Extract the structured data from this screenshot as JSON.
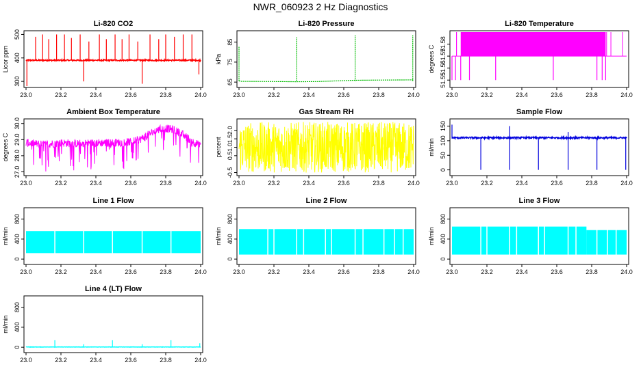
{
  "title": "NWR_060923 2 Hz Diagnostics",
  "chart_data": [
    {
      "type": "line",
      "title": "Li-820 CO2",
      "ylabel": "Licor ppm",
      "color": "#ff0000",
      "xlim": [
        23.0,
        24.0
      ],
      "ylim": [
        280,
        510
      ],
      "xticks": [
        "23.0",
        "23.2",
        "23.4",
        "23.6",
        "23.8",
        "24.0"
      ],
      "yticks": [
        "300",
        "400",
        "500"
      ],
      "baseline": 390,
      "noise": 3,
      "spikes": [
        {
          "x": 23.005,
          "y": 280
        },
        {
          "x": 23.055,
          "y": 490
        },
        {
          "x": 23.095,
          "y": 500
        },
        {
          "x": 23.13,
          "y": 480
        },
        {
          "x": 23.175,
          "y": 500
        },
        {
          "x": 23.22,
          "y": 500
        },
        {
          "x": 23.26,
          "y": 485
        },
        {
          "x": 23.31,
          "y": 500
        },
        {
          "x": 23.33,
          "y": 300
        },
        {
          "x": 23.36,
          "y": 470
        },
        {
          "x": 23.42,
          "y": 500
        },
        {
          "x": 23.46,
          "y": 480
        },
        {
          "x": 23.51,
          "y": 500
        },
        {
          "x": 23.55,
          "y": 480
        },
        {
          "x": 23.59,
          "y": 500
        },
        {
          "x": 23.64,
          "y": 470
        },
        {
          "x": 23.665,
          "y": 290
        },
        {
          "x": 23.71,
          "y": 500
        },
        {
          "x": 23.76,
          "y": 480
        },
        {
          "x": 23.8,
          "y": 500
        },
        {
          "x": 23.85,
          "y": 490
        },
        {
          "x": 23.9,
          "y": 500
        },
        {
          "x": 23.95,
          "y": 500
        },
        {
          "x": 23.99,
          "y": 330
        }
      ]
    },
    {
      "type": "line",
      "title": "Li-820 Pressure",
      "ylabel": "kPa",
      "color": "#00bb00",
      "xlim": [
        23.0,
        24.0
      ],
      "ylim": [
        63,
        90
      ],
      "xticks": [
        "23.0",
        "23.2",
        "23.4",
        "23.6",
        "23.8",
        "24.0"
      ],
      "yticks": [
        "65",
        "75",
        "85"
      ],
      "x": [
        23.0,
        23.01,
        23.2,
        23.33,
        23.45,
        23.66,
        23.8,
        23.99,
        24.0
      ],
      "y": [
        65.6,
        65.4,
        65.3,
        65.2,
        65.3,
        65.9,
        66.0,
        66.1,
        66.2
      ],
      "spikes": [
        {
          "x": 23.0,
          "y": 83
        },
        {
          "x": 23.33,
          "y": 87.5
        },
        {
          "x": 23.665,
          "y": 88.5
        },
        {
          "x": 23.995,
          "y": 88.5
        }
      ]
    },
    {
      "type": "line",
      "title": "Li-820 Temperature",
      "ylabel": "degrees C",
      "color": "#ff00ff",
      "xlim": [
        23.0,
        24.0
      ],
      "ylim": [
        51.545,
        51.59
      ],
      "xticks": [
        "23.0",
        "23.2",
        "23.4",
        "23.6",
        "23.8",
        "24.0"
      ],
      "yticks": [
        "51.55",
        "51.56",
        "51.57",
        "51.58"
      ],
      "low": 51.55,
      "mid": 51.57,
      "high": 51.59,
      "dense_range": [
        23.05,
        23.88
      ]
    },
    {
      "type": "line",
      "title": "Ambient Box Temperature",
      "ylabel": "degrees C",
      "color": "#ff00ff",
      "xlim": [
        23.0,
        24.0
      ],
      "ylim": [
        26.85,
        30.2
      ],
      "xticks": [
        "23.0",
        "23.2",
        "23.4",
        "23.6",
        "23.8",
        "24.0"
      ],
      "yticks": [
        "27.0",
        "28.0",
        "29.0",
        "30.0"
      ],
      "x": [
        23.0,
        23.1,
        23.2,
        23.3,
        23.4,
        23.5,
        23.6,
        23.65,
        23.7,
        23.75,
        23.8,
        23.85,
        23.9,
        23.95,
        24.0
      ],
      "y": [
        28.8,
        28.7,
        28.8,
        28.75,
        28.8,
        28.8,
        28.85,
        29.0,
        29.3,
        29.6,
        29.7,
        29.6,
        29.3,
        28.9,
        28.6
      ]
    },
    {
      "type": "line",
      "title": "Gas Stream RH",
      "ylabel": "percent",
      "color": "#ffff00",
      "xlim": [
        23.0,
        24.0
      ],
      "ylim": [
        -0.6,
        2.6
      ],
      "xticks": [
        "23.0",
        "23.2",
        "23.4",
        "23.6",
        "23.8",
        "24.0"
      ],
      "yticks": [
        "-0.5",
        "0.5",
        "1.0",
        "1.5",
        "2.0"
      ],
      "center": 0.9,
      "range": [
        -0.5,
        2.5
      ]
    },
    {
      "type": "line",
      "title": "Sample Flow",
      "ylabel": "ml/min",
      "color": "#0000dd",
      "xlim": [
        23.0,
        24.0
      ],
      "ylim": [
        -15,
        170
      ],
      "xticks": [
        "23.0",
        "23.2",
        "23.4",
        "23.6",
        "23.8",
        "24.0"
      ],
      "yticks": [
        "0",
        "50",
        "100",
        "150"
      ],
      "baseline": 110,
      "noise": 3,
      "spikes": [
        {
          "x": 23.0,
          "y": 155
        },
        {
          "x": 23.165,
          "y": 0
        },
        {
          "x": 23.33,
          "y": 150
        },
        {
          "x": 23.33,
          "y": 0
        },
        {
          "x": 23.495,
          "y": 0
        },
        {
          "x": 23.665,
          "y": 130
        },
        {
          "x": 23.665,
          "y": 0
        },
        {
          "x": 23.83,
          "y": 0
        },
        {
          "x": 23.995,
          "y": 0
        }
      ]
    },
    {
      "type": "line",
      "title": "Line 1 Flow",
      "ylabel": "ml/min",
      "color": "#00ffff",
      "xlim": [
        23.0,
        24.0
      ],
      "ylim": [
        -80,
        1000
      ],
      "xticks": [
        "23.0",
        "23.2",
        "23.4",
        "23.6",
        "23.8",
        "24.0"
      ],
      "yticks": [
        "0",
        "400",
        "800"
      ],
      "band": [
        120,
        560
      ],
      "gaps": [
        23.165,
        23.33,
        23.495,
        23.665,
        23.83
      ],
      "segments": [
        [
          23.0,
          24.0,
          560
        ]
      ]
    },
    {
      "type": "line",
      "title": "Line 2 Flow",
      "ylabel": "ml/min",
      "color": "#00ffff",
      "xlim": [
        23.0,
        24.0
      ],
      "ylim": [
        -80,
        1000
      ],
      "xticks": [
        "23.0",
        "23.2",
        "23.4",
        "23.6",
        "23.8",
        "24.0"
      ],
      "yticks": [
        "0",
        "400",
        "800"
      ],
      "band": [
        90,
        600
      ],
      "gaps": [
        23.165,
        23.33,
        23.495,
        23.665,
        23.83,
        23.89,
        23.94,
        23.2,
        23.37,
        23.53,
        23.71
      ],
      "segments": [
        [
          23.0,
          24.0,
          600
        ]
      ]
    },
    {
      "type": "line",
      "title": "Line 3 Flow",
      "ylabel": "ml/min",
      "color": "#00ffff",
      "xlim": [
        23.0,
        24.0
      ],
      "ylim": [
        -80,
        1000
      ],
      "xticks": [
        "23.0",
        "23.2",
        "23.4",
        "23.6",
        "23.8",
        "24.0"
      ],
      "yticks": [
        "0",
        "400",
        "800"
      ],
      "band": [
        90,
        650
      ],
      "gaps": [
        23.165,
        23.33,
        23.495,
        23.665,
        23.83,
        23.2,
        23.37,
        23.53,
        23.71,
        23.89,
        23.94
      ],
      "segments": [
        [
          23.0,
          23.77,
          650
        ],
        [
          23.77,
          24.0,
          580
        ]
      ]
    },
    {
      "type": "line",
      "title": "Line 4 (LT) Flow",
      "ylabel": "ml/min",
      "color": "#00ffff",
      "xlim": [
        23.0,
        24.0
      ],
      "ylim": [
        -80,
        1000
      ],
      "xticks": [
        "23.0",
        "23.2",
        "23.4",
        "23.6",
        "23.8",
        "24.0"
      ],
      "yticks": [
        "0",
        "400",
        "800"
      ],
      "baseline": 5,
      "noise": 3,
      "spikes": [
        {
          "x": 23.165,
          "y": 140
        },
        {
          "x": 23.33,
          "y": 60
        },
        {
          "x": 23.495,
          "y": 140
        },
        {
          "x": 23.665,
          "y": 60
        },
        {
          "x": 23.83,
          "y": 140
        },
        {
          "x": 23.995,
          "y": 80
        }
      ]
    }
  ]
}
